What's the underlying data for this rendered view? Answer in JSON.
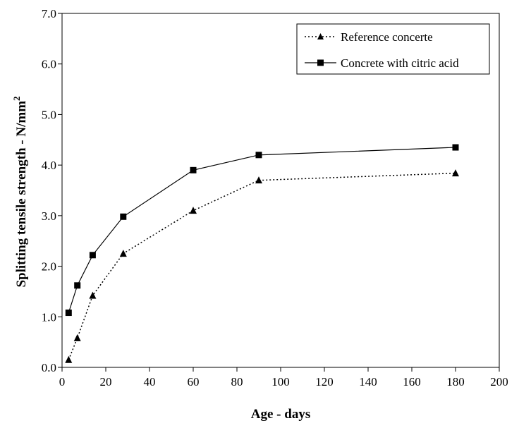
{
  "chart_data": {
    "type": "line",
    "xlabel": "Age - days",
    "ylabel": "Splitting tensile strength - N/mm",
    "ylabel_superscript": "2",
    "xlim": [
      0,
      200
    ],
    "ylim": [
      0,
      7
    ],
    "x_ticks": [
      "0",
      "20",
      "40",
      "60",
      "80",
      "100",
      "120",
      "140",
      "160",
      "180",
      "200"
    ],
    "y_ticks": [
      "0.0",
      "1.0",
      "2.0",
      "3.0",
      "4.0",
      "5.0",
      "6.0",
      "7.0"
    ],
    "grid": false,
    "legend_position": "top-right",
    "series": [
      {
        "name": "Reference concerte",
        "line_style": "dotted",
        "marker": "triangle",
        "x": [
          3,
          7,
          14,
          28,
          60,
          90,
          180
        ],
        "y": [
          0.15,
          0.58,
          1.42,
          2.25,
          3.1,
          3.7,
          3.84
        ]
      },
      {
        "name": "Concrete with citric acid",
        "line_style": "solid",
        "marker": "square",
        "x": [
          3,
          7,
          14,
          28,
          60,
          90,
          180
        ],
        "y": [
          1.08,
          1.62,
          2.22,
          2.98,
          3.9,
          4.2,
          4.35
        ]
      }
    ]
  }
}
